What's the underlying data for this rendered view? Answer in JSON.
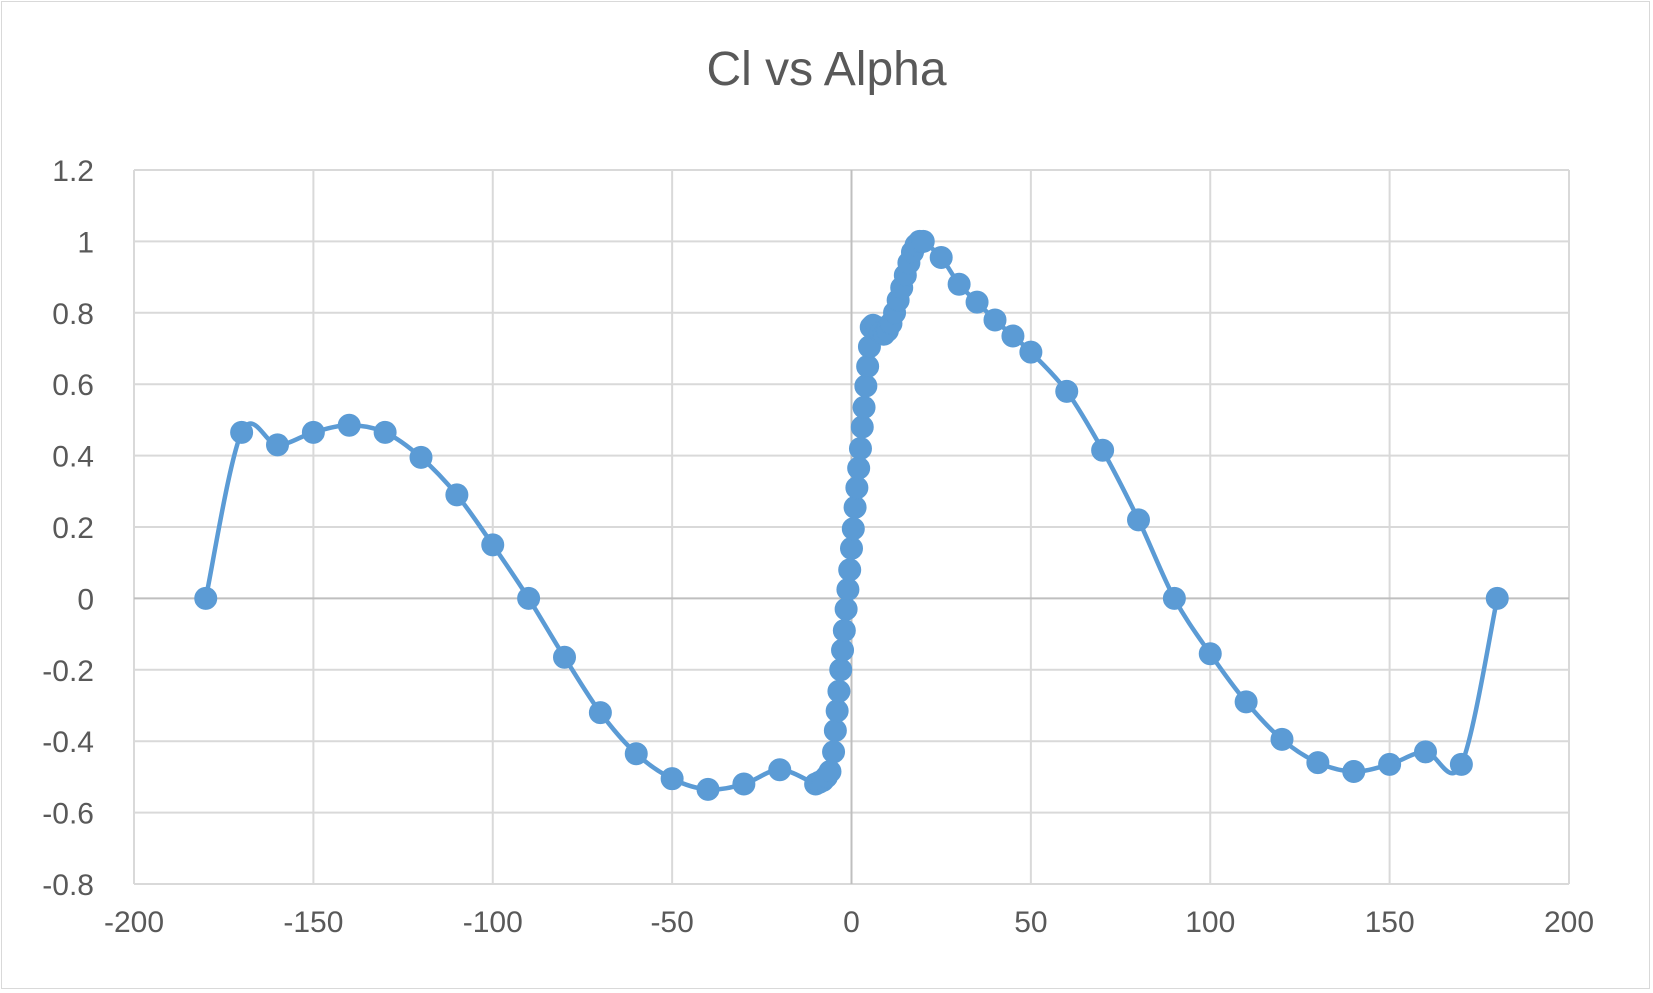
{
  "chart_data": {
    "type": "scatter",
    "title": "Cl vs Alpha",
    "xlabel": "",
    "ylabel": "",
    "xlim": [
      -200,
      200
    ],
    "ylim": [
      -0.8,
      1.2
    ],
    "x_ticks": [
      -200,
      -150,
      -100,
      -50,
      0,
      50,
      100,
      150,
      200
    ],
    "y_ticks": [
      1.2,
      1,
      0.8,
      0.6,
      0.4,
      0.2,
      0,
      -0.2,
      -0.4,
      -0.6,
      -0.8
    ],
    "x_tick_labels": [
      "-200",
      "-150",
      "-100",
      "-50",
      "0",
      "50",
      "100",
      "150",
      "200"
    ],
    "y_tick_labels": [
      "1.2",
      "1",
      "0.8",
      "0.6",
      "0.4",
      "0.2",
      "0",
      "-0.2",
      "-0.4",
      "-0.6",
      "-0.8"
    ],
    "grid": true,
    "legend": "none",
    "line_style": "smooth line with markers",
    "series_color": "#5b9bd5",
    "series": [
      {
        "x": [
          -180,
          -170,
          -160,
          -150,
          -140,
          -130,
          -120,
          -110,
          -100,
          -90,
          -80,
          -70,
          -60,
          -50,
          -40,
          -30,
          -20,
          -10,
          -9,
          -8,
          -7,
          -6,
          -5,
          -4.5,
          -4,
          -3.5,
          -3,
          -2.5,
          -2,
          -1.5,
          -1,
          -0.5,
          0,
          0.5,
          1,
          1.5,
          2,
          2.5,
          3,
          3.5,
          4,
          4.5,
          5,
          5.5,
          6,
          7,
          8,
          9,
          10,
          11,
          12,
          13,
          14,
          15,
          16,
          17,
          18,
          19,
          20,
          25,
          30,
          35,
          40,
          45,
          50,
          60,
          70,
          80,
          90,
          100,
          110,
          120,
          130,
          140,
          150,
          160,
          170,
          180
        ],
        "y": [
          0,
          0.465,
          0.43,
          0.465,
          0.485,
          0.465,
          0.395,
          0.29,
          0.15,
          0,
          -0.165,
          -0.32,
          -0.435,
          -0.505,
          -0.535,
          -0.52,
          -0.48,
          -0.52,
          -0.515,
          -0.51,
          -0.5,
          -0.485,
          -0.43,
          -0.37,
          -0.315,
          -0.26,
          -0.2,
          -0.145,
          -0.09,
          -0.03,
          0.025,
          0.08,
          0.14,
          0.195,
          0.255,
          0.31,
          0.365,
          0.42,
          0.48,
          0.535,
          0.595,
          0.65,
          0.705,
          0.76,
          0.765,
          0.76,
          0.745,
          0.74,
          0.75,
          0.77,
          0.8,
          0.835,
          0.87,
          0.905,
          0.94,
          0.97,
          0.99,
          1.0,
          1.0,
          0.955,
          0.88,
          0.83,
          0.78,
          0.735,
          0.69,
          0.58,
          0.415,
          0.22,
          0,
          -0.155,
          -0.29,
          -0.395,
          -0.46,
          -0.485,
          -0.465,
          -0.43,
          -0.465,
          0
        ]
      }
    ]
  }
}
